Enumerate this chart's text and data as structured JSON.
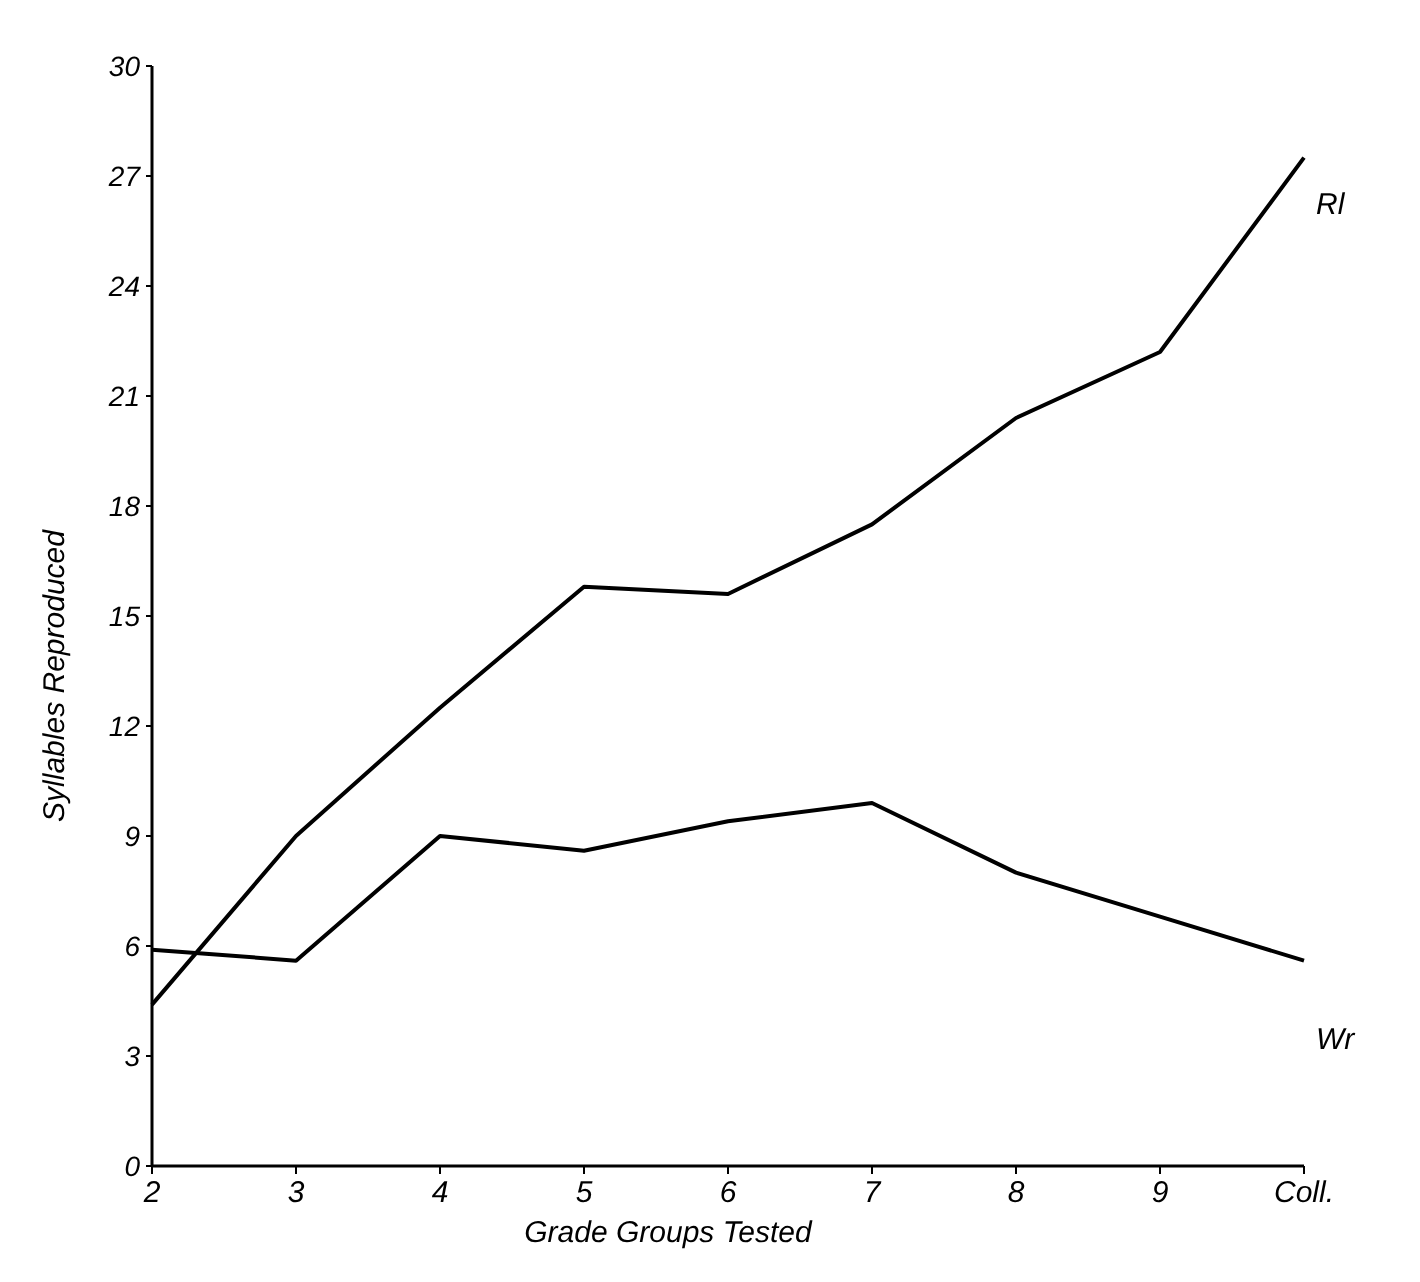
{
  "chart_data": {
    "type": "line",
    "xlabel": "Grade Groups Tested",
    "ylabel": "Syllables Reproduced",
    "categories": [
      "2",
      "3",
      "4",
      "5",
      "6",
      "7",
      "8",
      "9",
      "Coll."
    ],
    "series": [
      {
        "name": "Rl",
        "color": "#000000",
        "values": [
          4.4,
          9.0,
          12.5,
          15.8,
          15.6,
          17.5,
          20.4,
          22.2,
          27.5
        ]
      },
      {
        "name": "Wr",
        "color": "#000000",
        "values": [
          5.9,
          5.6,
          9.0,
          8.6,
          9.4,
          9.9,
          8.0,
          6.8,
          5.6
        ]
      }
    ],
    "ylim": [
      0,
      30
    ],
    "yticks": [
      0,
      3,
      6,
      9,
      12,
      15,
      18,
      21,
      24,
      27,
      30
    ],
    "grid": false,
    "legend": false,
    "marker": "none",
    "line_style": "solid"
  }
}
